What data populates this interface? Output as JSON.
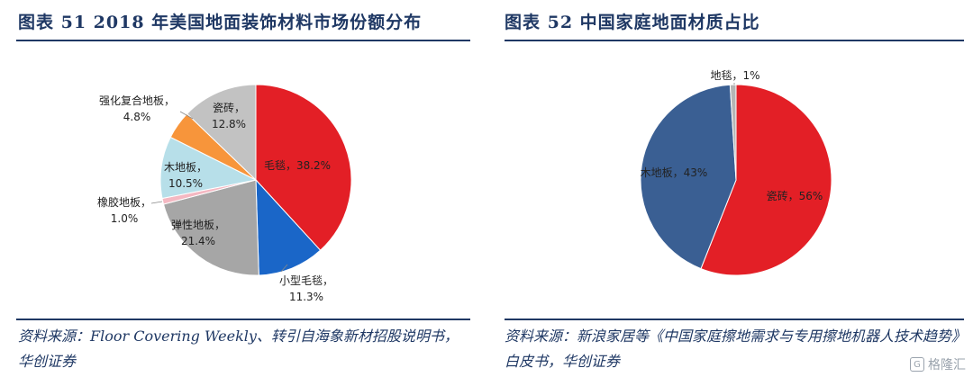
{
  "left": {
    "title": "图表 51   2018 年美国地面装饰材料市场份额分布",
    "source": "资料来源：Floor Covering Weekly、转引自海象新材招股说明书，华创证券",
    "labels": [
      [
        "毛毯，38.2%"
      ],
      [
        "小型毛毯，",
        "11.3%"
      ],
      [
        "弹性地板，",
        "21.4%"
      ],
      [
        "橡胶地板，",
        "1.0%"
      ],
      [
        "木地板，",
        "10.5%"
      ],
      [
        "强化复合地板，",
        "4.8%"
      ],
      [
        "瓷砖，",
        "12.8%"
      ]
    ]
  },
  "right": {
    "title": "图表 52   中国家庭地面材质占比",
    "source": "资料来源：新浪家居等《中国家庭擦地需求与专用擦地机器人技术趋势》白皮书，华创证券",
    "labels": [
      [
        "瓷砖，56%"
      ],
      [
        "木地板，43%"
      ],
      [
        "地毯，1%"
      ]
    ]
  },
  "watermark": "格隆汇",
  "chart_data": [
    {
      "type": "pie",
      "title": "2018 年美国地面装饰材料市场份额分布",
      "categories": [
        "毛毯",
        "小型毛毯",
        "弹性地板",
        "橡胶地板",
        "木地板",
        "强化复合地板",
        "瓷砖"
      ],
      "values": [
        38.2,
        11.3,
        21.4,
        1.0,
        10.5,
        4.8,
        12.8
      ],
      "colors": [
        "#e31f26",
        "#1a66c8",
        "#a6a6a6",
        "#f4b8c2",
        "#b7dfe9",
        "#f7953b",
        "#c2c2c2"
      ]
    },
    {
      "type": "pie",
      "title": "中国家庭地面材质占比",
      "categories": [
        "瓷砖",
        "木地板",
        "地毯"
      ],
      "values": [
        56,
        43,
        1
      ],
      "colors": [
        "#e31f26",
        "#3a5f93",
        "#b5b5b5"
      ]
    }
  ]
}
